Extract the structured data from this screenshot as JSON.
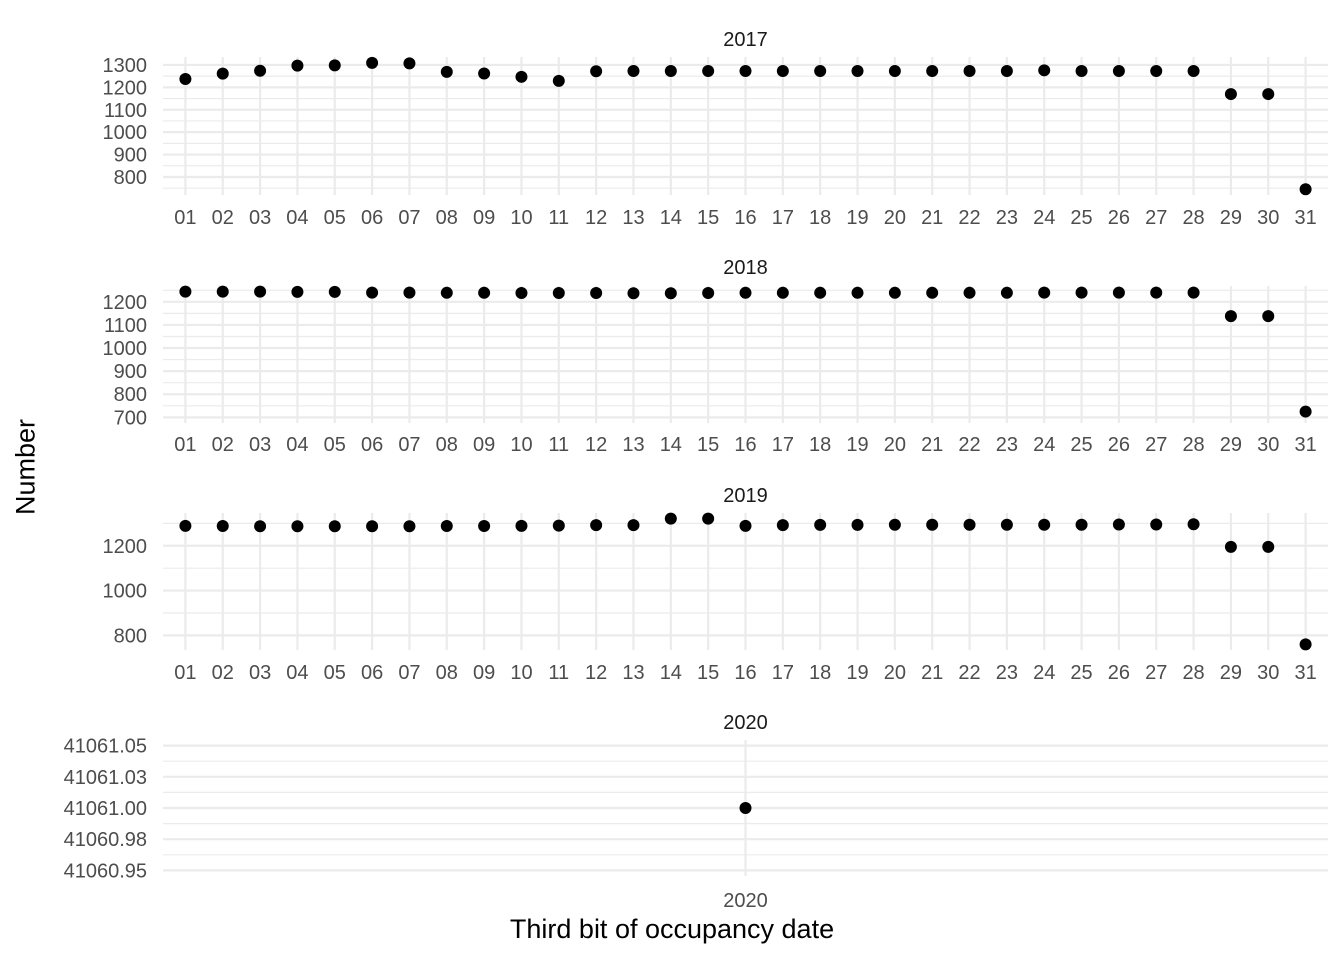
{
  "chart_data": {
    "type": "scatter",
    "xlabel": "Third bit of occupancy date",
    "ylabel": "Number",
    "grid": true,
    "legend": "none",
    "point_color": "#000000",
    "grid_color": "#ebebeb",
    "panels": [
      {
        "title": "2017",
        "x": [
          "01",
          "02",
          "03",
          "04",
          "05",
          "06",
          "07",
          "08",
          "09",
          "10",
          "11",
          "12",
          "13",
          "14",
          "15",
          "16",
          "17",
          "18",
          "19",
          "20",
          "21",
          "22",
          "23",
          "24",
          "25",
          "26",
          "27",
          "28",
          "29",
          "30",
          "31"
        ],
        "y": [
          1237,
          1261,
          1274,
          1297,
          1298,
          1309,
          1307,
          1269,
          1262,
          1247,
          1229,
          1272,
          1273,
          1273,
          1273,
          1273,
          1273,
          1273,
          1273,
          1273,
          1273,
          1273,
          1273,
          1276,
          1273,
          1273,
          1273,
          1273,
          1170,
          1170,
          745
        ],
        "ylim": [
          745,
          1310
        ],
        "yticks": [
          800,
          900,
          1000,
          1100,
          1200,
          1300
        ],
        "ytick_labels": [
          "800",
          "900",
          "1000",
          "1100",
          "1200",
          "1300"
        ]
      },
      {
        "title": "2018",
        "x": [
          "01",
          "02",
          "03",
          "04",
          "05",
          "06",
          "07",
          "08",
          "09",
          "10",
          "11",
          "12",
          "13",
          "14",
          "15",
          "16",
          "17",
          "18",
          "19",
          "20",
          "21",
          "22",
          "23",
          "24",
          "25",
          "26",
          "27",
          "28",
          "29",
          "30",
          "31"
        ],
        "y": [
          1244,
          1244,
          1244,
          1243,
          1243,
          1240,
          1240,
          1239,
          1239,
          1238,
          1238,
          1238,
          1237,
          1237,
          1238,
          1239,
          1239,
          1239,
          1239,
          1239,
          1239,
          1239,
          1239,
          1240,
          1240,
          1240,
          1240,
          1240,
          1138,
          1138,
          725
        ],
        "ylim": [
          700,
          1244
        ],
        "yticks": [
          700,
          800,
          900,
          1000,
          1100,
          1200
        ],
        "ytick_labels": [
          "700",
          "800",
          "900",
          "1000",
          "1100",
          "1200"
        ]
      },
      {
        "title": "2019",
        "x": [
          "01",
          "02",
          "03",
          "04",
          "05",
          "06",
          "07",
          "08",
          "09",
          "10",
          "11",
          "12",
          "13",
          "14",
          "15",
          "16",
          "17",
          "18",
          "19",
          "20",
          "21",
          "22",
          "23",
          "24",
          "25",
          "26",
          "27",
          "28",
          "29",
          "30",
          "31"
        ],
        "y": [
          1289,
          1288,
          1287,
          1287,
          1287,
          1287,
          1287,
          1288,
          1288,
          1289,
          1290,
          1292,
          1292,
          1321,
          1321,
          1289,
          1292,
          1293,
          1293,
          1294,
          1294,
          1294,
          1294,
          1294,
          1294,
          1295,
          1295,
          1296,
          1195,
          1195,
          760
        ],
        "ylim": [
          760,
          1321
        ],
        "yticks": [
          800,
          1000,
          1200
        ],
        "ytick_labels": [
          "800",
          "1000",
          "1200"
        ]
      },
      {
        "title": "2020",
        "x": [
          "2020"
        ],
        "y": [
          41061
        ],
        "ylim": [
          41060.95,
          41061.05
        ],
        "yticks": [
          41060.95,
          41060.975,
          41061,
          41061.025,
          41061.05
        ],
        "ytick_labels": [
          "41060.95",
          "41060.98",
          "41061.00",
          "41061.03",
          "41061.05"
        ]
      }
    ]
  }
}
